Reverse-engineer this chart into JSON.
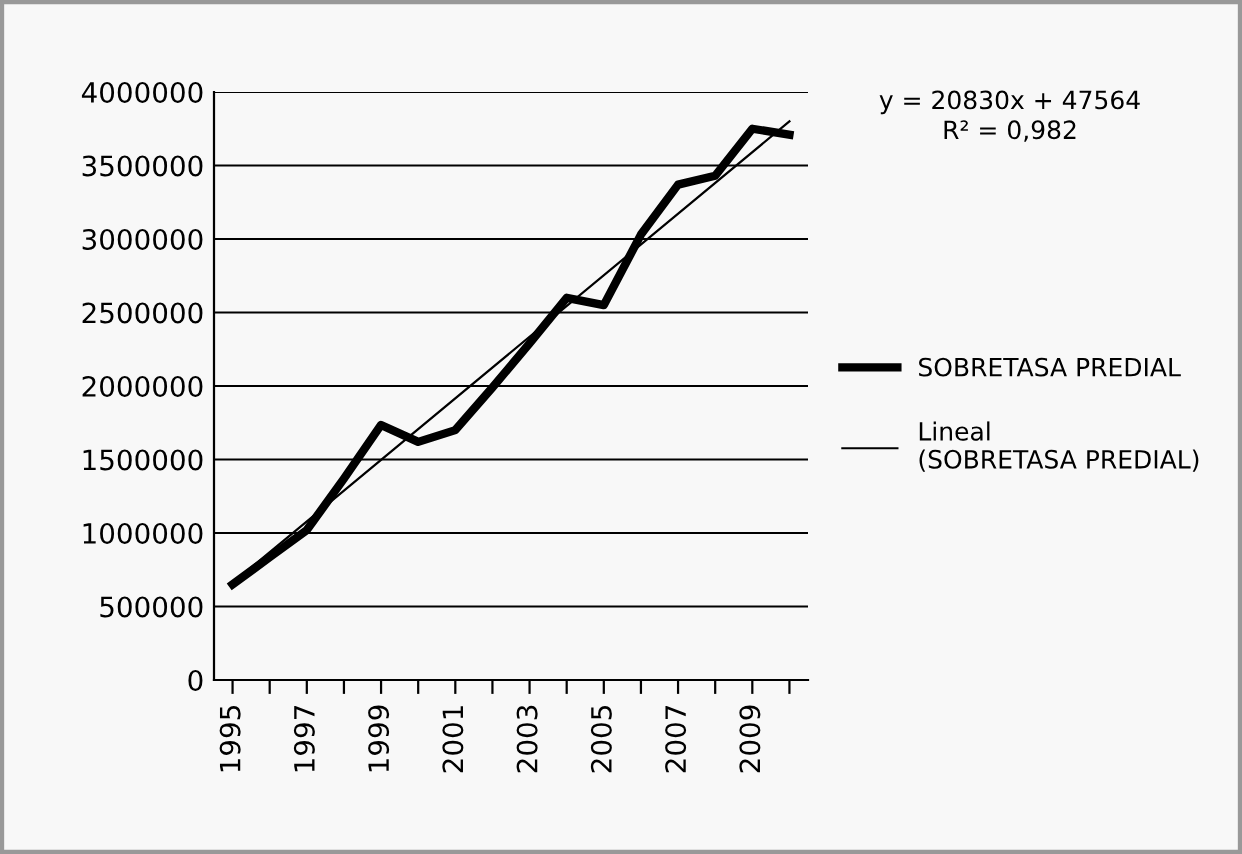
{
  "chart_data": {
    "type": "line",
    "x": [
      1995,
      1996,
      1997,
      1998,
      1999,
      2000,
      2001,
      2002,
      2003,
      2004,
      2005,
      2006,
      2007,
      2008,
      2009,
      2010
    ],
    "series": [
      {
        "name": "SOBRETASA PREDIAL",
        "color": "#000000",
        "values": [
          650000,
          835000,
          1020000,
          1370000,
          1735000,
          1620000,
          1700000,
          1990000,
          2290000,
          2600000,
          2550000,
          3030000,
          3370000,
          3430000,
          3750000,
          3710000
        ]
      },
      {
        "name": "Lineal (SOBRETASA PREDIAL)",
        "color": "#000000",
        "x": [
          1995,
          2010
        ],
        "values": [
          660000,
          3800000
        ]
      }
    ],
    "xlim": [
      1994.5,
      2010.5
    ],
    "xticks": [
      1995,
      {
        "value": 1996,
        "label": null
      },
      1997,
      {
        "value": 1998,
        "label": null
      },
      1999,
      {
        "value": 2000,
        "label": null
      },
      2001,
      {
        "value": 2002,
        "label": null
      },
      2003,
      {
        "value": 2004,
        "label": null
      },
      2005,
      {
        "value": 2006,
        "label": null
      },
      2007,
      {
        "value": 2008,
        "label": null
      },
      2009,
      {
        "value": 2010,
        "label": null
      }
    ],
    "ylim": [
      0,
      4000000
    ],
    "yticks": [
      0,
      500000,
      1000000,
      1500000,
      2000000,
      2500000,
      3000000,
      3500000,
      4000000
    ],
    "grid": "y",
    "legend": "right",
    "annotations": [
      "y = 20830x + 47564\nR² = 0,982"
    ]
  }
}
